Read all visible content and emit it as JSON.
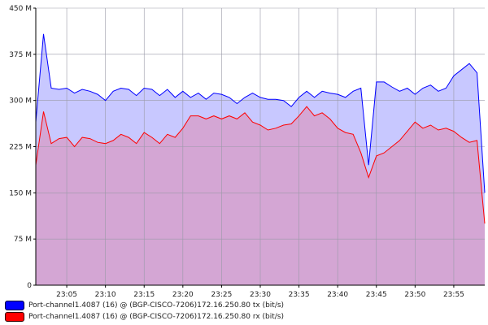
{
  "chart_data": {
    "type": "area",
    "title": "",
    "xlabel": "",
    "ylabel": "",
    "ylim": [
      0,
      450
    ],
    "xlim": [
      "23:01",
      "23:59"
    ],
    "y_ticks": [
      0,
      75,
      150,
      225,
      300,
      375,
      450
    ],
    "y_tick_labels": [
      "0",
      "75 M",
      "150 M",
      "225 M",
      "300 M",
      "375 M",
      "450 M"
    ],
    "x_ticks": [
      "23:05",
      "23:10",
      "23:15",
      "23:20",
      "23:25",
      "23:30",
      "23:35",
      "23:40",
      "23:45",
      "23:50",
      "23:55"
    ],
    "grid": true,
    "legend_position": "bottom-left",
    "x": [
      "23:01",
      "23:02",
      "23:03",
      "23:04",
      "23:05",
      "23:06",
      "23:07",
      "23:08",
      "23:09",
      "23:10",
      "23:11",
      "23:12",
      "23:13",
      "23:14",
      "23:15",
      "23:16",
      "23:17",
      "23:18",
      "23:19",
      "23:20",
      "23:21",
      "23:22",
      "23:23",
      "23:24",
      "23:25",
      "23:26",
      "23:27",
      "23:28",
      "23:29",
      "23:30",
      "23:31",
      "23:32",
      "23:33",
      "23:34",
      "23:35",
      "23:36",
      "23:37",
      "23:38",
      "23:39",
      "23:40",
      "23:41",
      "23:42",
      "23:43",
      "23:44",
      "23:45",
      "23:46",
      "23:47",
      "23:48",
      "23:49",
      "23:50",
      "23:51",
      "23:52",
      "23:53",
      "23:54",
      "23:55",
      "23:56",
      "23:57",
      "23:58",
      "23:59"
    ],
    "series": [
      {
        "name": "Port-channel1.4087 (16) @ (BGP-CISCO-7206)172.16.250.80 tx (bit/s)",
        "color": "#0000ff",
        "fill": "#c8c8ff",
        "values": [
          265,
          408,
          320,
          318,
          320,
          312,
          318,
          315,
          310,
          300,
          315,
          320,
          318,
          308,
          320,
          318,
          308,
          318,
          305,
          315,
          305,
          312,
          302,
          312,
          310,
          305,
          295,
          305,
          312,
          305,
          302,
          302,
          300,
          290,
          305,
          315,
          305,
          315,
          312,
          310,
          305,
          315,
          320,
          195,
          330,
          330,
          322,
          315,
          320,
          310,
          320,
          325,
          315,
          320,
          340,
          350,
          360,
          345,
          150
        ]
      },
      {
        "name": "Port-channel1.4087 (16) @ (BGP-CISCO-7206)172.16.250.80 rx (bit/s)",
        "color": "#ff0000",
        "fill": "#d4a6d4",
        "values": [
          195,
          282,
          230,
          238,
          240,
          225,
          240,
          238,
          232,
          230,
          235,
          245,
          240,
          230,
          248,
          240,
          230,
          245,
          240,
          255,
          275,
          275,
          270,
          275,
          270,
          275,
          270,
          280,
          265,
          260,
          252,
          255,
          260,
          262,
          275,
          290,
          275,
          280,
          270,
          255,
          248,
          245,
          215,
          175,
          210,
          215,
          225,
          235,
          250,
          265,
          255,
          260,
          252,
          255,
          250,
          240,
          232,
          235,
          100
        ]
      }
    ]
  }
}
